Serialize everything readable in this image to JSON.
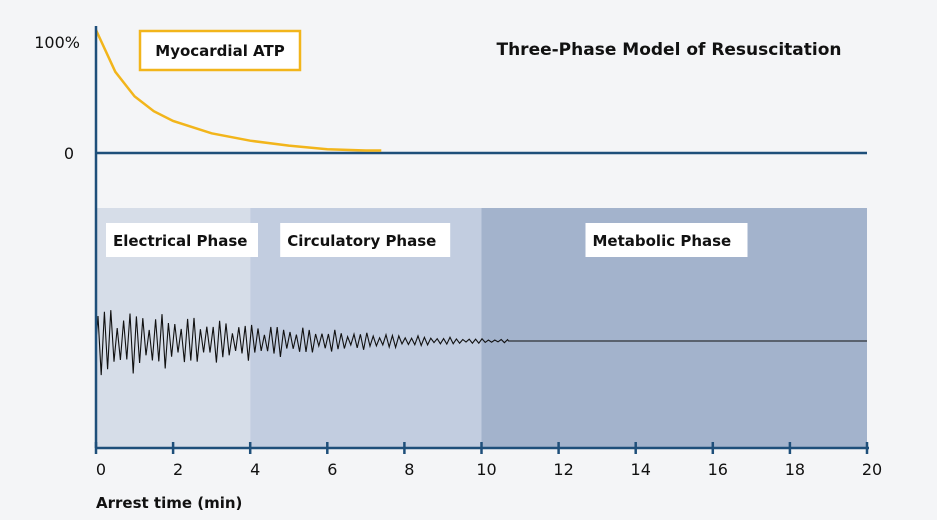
{
  "chart_data": {
    "type": "line",
    "title": "Three-Phase Model of Resuscitation",
    "xlabel": "Arrest time (min)",
    "xlim": [
      0,
      20
    ],
    "x_ticks": [
      0,
      2,
      4,
      6,
      8,
      10,
      12,
      14,
      16,
      18,
      20
    ],
    "y_tick_labels": [
      "100%",
      "0"
    ],
    "atp_series": {
      "name": "Myocardial ATP",
      "color": "#f2b51b",
      "x": [
        0,
        0.5,
        1,
        1.5,
        2,
        3,
        4,
        5,
        6,
        7,
        7.4
      ],
      "y": [
        100,
        66,
        46,
        34,
        26,
        16,
        10,
        6,
        3,
        2,
        2
      ]
    },
    "phases": [
      {
        "name": "Electrical Phase",
        "start": 0,
        "end": 4,
        "color": "#d6dde8"
      },
      {
        "name": "Circulatory Phase",
        "start": 4,
        "end": 10,
        "color": "#c2cde0"
      },
      {
        "name": "Metabolic Phase",
        "start": 10,
        "end": 20,
        "color": "#a3b3cc"
      }
    ],
    "ecg_trace": {
      "color": "#111111",
      "fibrillation_end": 10.7,
      "note_shape": "ventricular fibrillation with decreasing amplitude, then flat line"
    },
    "axis_color": "#1e4f7a"
  }
}
